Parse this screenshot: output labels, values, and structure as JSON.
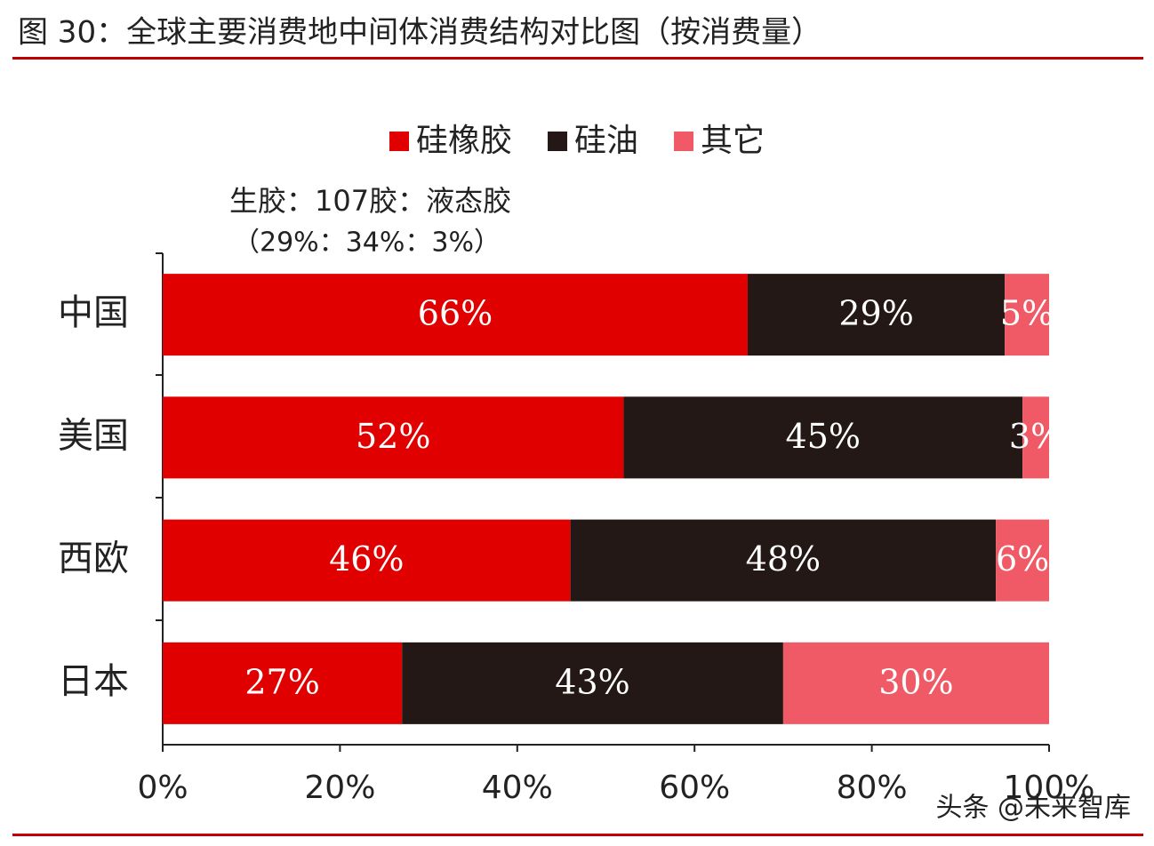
{
  "chart_data": {
    "type": "stacked-barh",
    "title": "图 30：全球主要消费地中间体消费结构对比图（按消费量）",
    "annotations": [
      "生胶：107胶：液态胶",
      "（29%：34%：3%）"
    ],
    "watermark": "头条 @未来智库",
    "categories": [
      "中国",
      "美国",
      "西欧",
      "日本"
    ],
    "series": [
      {
        "name": "硅橡胶",
        "color": "#e00000",
        "values": [
          66,
          52,
          46,
          27
        ],
        "value_labels": [
          "66%",
          "52%",
          "46%",
          "27%"
        ]
      },
      {
        "name": "硅油",
        "color": "#231815",
        "values": [
          29,
          45,
          48,
          43
        ],
        "value_labels": [
          "29%",
          "45%",
          "48%",
          "43%"
        ]
      },
      {
        "name": "其它",
        "color": "#f05a66",
        "values": [
          5,
          3,
          6,
          30
        ],
        "value_labels": [
          "5%",
          "3%",
          "6%",
          "30%"
        ]
      }
    ],
    "xlim": [
      0,
      100
    ],
    "xticks": [
      {
        "value": 0,
        "label": "0%"
      },
      {
        "value": 20,
        "label": "20%"
      },
      {
        "value": 40,
        "label": "40%"
      },
      {
        "value": 60,
        "label": "60%"
      },
      {
        "value": 80,
        "label": "80%"
      },
      {
        "value": 100,
        "label": "100%"
      }
    ],
    "legend": "top"
  }
}
